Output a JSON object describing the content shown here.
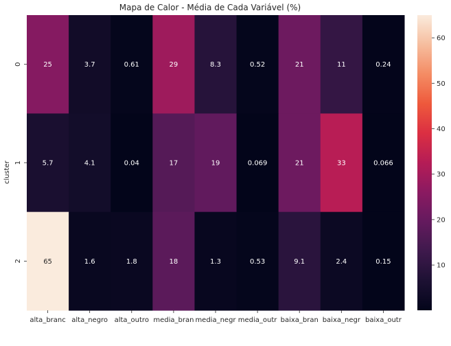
{
  "chart_data": {
    "type": "heatmap",
    "title": "Mapa de Calor - Média de Cada Variável (%)",
    "xlabel": "",
    "ylabel": "cluster",
    "columns": [
      "alta_branc",
      "alta_negro",
      "alta_outro",
      "media_bran",
      "media_negr",
      "media_outr",
      "baixa_bran",
      "baixa_negr",
      "baixa_outr"
    ],
    "rows": [
      "0",
      "1",
      "2"
    ],
    "values": [
      [
        25,
        3.7,
        0.61,
        29,
        8.3,
        0.52,
        21,
        11,
        0.24
      ],
      [
        5.7,
        4.1,
        0.04,
        17,
        19,
        0.069,
        21,
        33,
        0.066
      ],
      [
        65,
        1.6,
        1.8,
        18,
        1.3,
        0.53,
        9.1,
        2.4,
        0.15
      ]
    ],
    "labels": [
      [
        "25",
        "3.7",
        "0.61",
        "29",
        "8.3",
        "0.52",
        "21",
        "11",
        "0.24"
      ],
      [
        "5.7",
        "4.1",
        "0.04",
        "17",
        "19",
        "0.069",
        "21",
        "33",
        "0.066"
      ],
      [
        "65",
        "1.6",
        "1.8",
        "18",
        "1.3",
        "0.53",
        "9.1",
        "2.4",
        "0.15"
      ]
    ],
    "colormap": "rocket",
    "vmin": 0.04,
    "vmax": 65,
    "colorbar_ticks": [
      10,
      20,
      30,
      40,
      50,
      60
    ],
    "colorbar_tick_labels": [
      "10",
      "20",
      "30",
      "40",
      "50",
      "60"
    ],
    "annotation_colors": {
      "on_dark": "#ffffff",
      "on_light": "#262626"
    }
  }
}
